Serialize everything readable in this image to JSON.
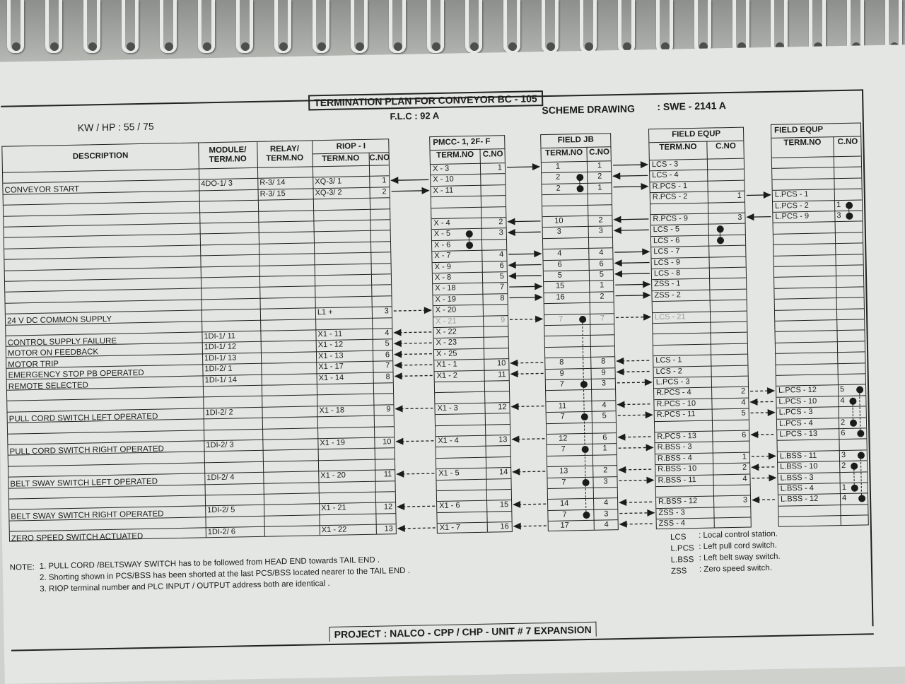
{
  "header": {
    "title": "TERMINATION PLAN FOR CONVEYOR BC - 105",
    "flc": "F.L.C : 92 A",
    "kw_hp": "KW / HP : 55 / 75",
    "scheme_label": "SCHEME DRAWING",
    "scheme_value": ": SWE - 2141 A"
  },
  "tables": {
    "main": {
      "headers": {
        "description": "DESCRIPTION",
        "module": "MODULE/ TERM.NO",
        "relay": "RELAY/ TERM.NO",
        "riop": "RIOP - I",
        "term": "TERM.NO",
        "cno": "C.NO"
      },
      "rows": {
        "1": [
          "CONVEYOR START",
          "4DO-1/ 3",
          "R-3/ 14",
          "XQ-3/ 1",
          "1"
        ],
        "2": [
          "",
          "",
          "R-3/ 15",
          "XQ-3/ 2",
          "2"
        ],
        "13": [
          "24 V DC COMMON SUPPLY",
          "",
          "",
          "L1 +",
          "3"
        ],
        "15": [
          "CONTROL SUPPLY FAILURE",
          "1DI-1/ 11",
          "",
          "X1 - 11",
          "4"
        ],
        "16": [
          "MOTOR ON FEEDBACK",
          "1DI-1/ 12",
          "",
          "X1 - 12",
          "5"
        ],
        "17": [
          "MOTOR TRIP",
          "1DI-1/ 13",
          "",
          "X1 - 13",
          "6"
        ],
        "18": [
          "EMERGENCY STOP PB OPERATED",
          "1DI-2/ 1",
          "",
          "X1 - 17",
          "7"
        ],
        "19": [
          "REMOTE SELECTED",
          "1DI-1/ 14",
          "",
          "X1 - 14",
          "8"
        ],
        "22": [
          "PULL CORD SWITCH LEFT OPERATED",
          "1DI-2/ 2",
          "",
          "X1 - 18",
          "9"
        ],
        "25": [
          "PULL CORD SWITCH RIGHT OPERATED",
          "1DI-2/ 3",
          "",
          "X1 - 19",
          "10"
        ],
        "28": [
          "BELT SWAY SWITCH LEFT OPERATED",
          "1DI-2/ 4",
          "",
          "X1 - 20",
          "11"
        ],
        "31": [
          "BELT SWAY SWITCH RIGHT OPERATED",
          "1DI-2/ 5",
          "",
          "X1 - 21",
          "12"
        ],
        "33": [
          "ZERO SPEED SWITCH ACTUATED",
          "1DI-2/ 6",
          "",
          "X1 - 22",
          "13"
        ]
      }
    },
    "pmcc": {
      "title": "PMCC- 1, 2F- F",
      "term": "TERM.NO",
      "cno": "C.NO",
      "rows": {
        "0": [
          "X - 3",
          "1"
        ],
        "1": [
          "X - 10",
          ""
        ],
        "2": [
          "X - 11",
          ""
        ],
        "5": [
          "X - 4",
          "2"
        ],
        "6": [
          "X - 5",
          "3"
        ],
        "7": [
          "X - 6",
          ""
        ],
        "8": [
          "X - 7",
          "4"
        ],
        "9": [
          "X - 9",
          "6"
        ],
        "10": [
          "X - 8",
          "5"
        ],
        "11": [
          "X - 18",
          "7"
        ],
        "12": [
          "X - 19",
          "8"
        ],
        "13": [
          "X - 20",
          ""
        ],
        "14": [
          "X - 21",
          "9"
        ],
        "15": [
          "X - 22",
          ""
        ],
        "16": [
          "X - 23",
          ""
        ],
        "17": [
          "X - 25",
          ""
        ],
        "18": [
          "X1 - 1",
          "10"
        ],
        "19": [
          "X1 - 2",
          "11"
        ],
        "22": [
          "X1 - 3",
          "12"
        ],
        "25": [
          "X1 - 4",
          "13"
        ],
        "28": [
          "X1 - 5",
          "14"
        ],
        "31": [
          "X1 - 6",
          "15"
        ],
        "33": [
          "X1 - 7",
          "16"
        ]
      },
      "shorting": [
        [
          6,
          7
        ]
      ],
      "dot_col": 0
    },
    "jb": {
      "title": "FIELD JB",
      "term": "TERM.NO",
      "cno": "C.NO",
      "rows": {
        "0": [
          "1",
          "1"
        ],
        "1": [
          "2",
          "2"
        ],
        "2": [
          "2",
          "1"
        ],
        "5": [
          "10",
          "2"
        ],
        "6": [
          "3",
          "3"
        ],
        "8": [
          "4",
          "4"
        ],
        "9": [
          "6",
          "6"
        ],
        "10": [
          "5",
          "5"
        ],
        "11": [
          "15",
          "1"
        ],
        "12": [
          "16",
          "2"
        ],
        "14": [
          "7",
          "7"
        ],
        "18": [
          "8",
          "8"
        ],
        "19": [
          "9",
          "9"
        ],
        "20": [
          "7",
          "3"
        ],
        "22": [
          "11",
          "4"
        ],
        "23": [
          "7",
          "5"
        ],
        "25": [
          "12",
          "6"
        ],
        "26": [
          "7",
          "1"
        ],
        "28": [
          "13",
          "2"
        ],
        "29": [
          "7",
          "3"
        ],
        "31": [
          "14",
          "4"
        ],
        "32": [
          "7",
          "3"
        ],
        "33": [
          "17",
          "4"
        ]
      },
      "shorting": [
        [
          1,
          2
        ],
        [
          14,
          20,
          23,
          26,
          29,
          32
        ]
      ],
      "dot_col": 0
    },
    "fe1": {
      "title": "FIELD EQUP",
      "term": "TERM.NO",
      "cno": "C.NO",
      "rows": {
        "0": [
          "LCS - 3",
          ""
        ],
        "1": [
          "LCS - 4",
          ""
        ],
        "2": [
          "R.PCS - 1",
          ""
        ],
        "3": [
          "R.PCS - 2",
          "1"
        ],
        "5": [
          "R.PCS - 9",
          "3"
        ],
        "6": [
          "LCS - 5",
          ""
        ],
        "7": [
          "LCS - 6",
          ""
        ],
        "8": [
          "LCS - 7",
          ""
        ],
        "9": [
          "LCS - 9",
          ""
        ],
        "10": [
          "LCS - 8",
          ""
        ],
        "11": [
          "ZSS - 1",
          ""
        ],
        "12": [
          "ZSS - 2",
          ""
        ],
        "14": [
          "LCS - 21",
          ""
        ],
        "18": [
          "LCS - 1",
          ""
        ],
        "19": [
          "LCS - 2",
          ""
        ],
        "20": [
          "L.PCS - 3",
          ""
        ],
        "21": [
          "R.PCS - 4",
          "2"
        ],
        "22": [
          "R.PCS - 10",
          "4"
        ],
        "23": [
          "R.PCS - 11",
          "5"
        ],
        "25": [
          "R.PCS - 13",
          "6"
        ],
        "26": [
          "R.BSS - 3",
          ""
        ],
        "27": [
          "R.BSS - 4",
          "1"
        ],
        "28": [
          "R.BSS - 10",
          "2"
        ],
        "29": [
          "R.BSS - 11",
          "4"
        ],
        "31": [
          "R.BSS - 12",
          "3"
        ],
        "32": [
          "ZSS - 3",
          ""
        ],
        "33": [
          "ZSS - 4",
          ""
        ]
      },
      "shorting": [
        [
          6,
          7
        ]
      ],
      "dot_col": 1
    },
    "fe2": {
      "title": "FIELD EQUP",
      "term": "TERM.NO",
      "cno": "C.NO",
      "rows": {
        "3": [
          "L.PCS - 1",
          ""
        ],
        "4": [
          "L.PCS - 2",
          "1"
        ],
        "5": [
          "L.PCS - 9",
          "3"
        ],
        "21": [
          "L.PCS - 12",
          "5"
        ],
        "22": [
          "L.PCS - 10",
          "4"
        ],
        "23": [
          "L.PCS - 3",
          ""
        ],
        "24": [
          "L.PCS - 4",
          "2"
        ],
        "25": [
          "L.PCS - 13",
          "6"
        ],
        "27": [
          "L.BSS - 11",
          "3"
        ],
        "28": [
          "L.BSS - 10",
          "2"
        ],
        "29": [
          "L.BSS - 3",
          ""
        ],
        "30": [
          "L.BSS - 4",
          "1"
        ],
        "31": [
          "L.BSS - 12",
          "4"
        ]
      },
      "shorting": [
        [
          4,
          5
        ],
        [
          21,
          25
        ],
        [
          22,
          24
        ],
        [
          27,
          31
        ],
        [
          28,
          30
        ]
      ],
      "dot_col": 1
    }
  },
  "faded_rows": [
    14
  ],
  "connections": [
    {
      "gap": 0,
      "row": 1,
      "dir": "left",
      "dashed": false
    },
    {
      "gap": 0,
      "row": 2,
      "dir": "right",
      "dashed": false
    },
    {
      "gap": 0,
      "row": 13,
      "dir": "right",
      "dashed": true
    },
    {
      "gap": 0,
      "row": 15,
      "dir": "left",
      "dashed": true
    },
    {
      "gap": 0,
      "row": 16,
      "dir": "left",
      "dashed": true
    },
    {
      "gap": 0,
      "row": 17,
      "dir": "left",
      "dashed": true
    },
    {
      "gap": 0,
      "row": 18,
      "dir": "left",
      "dashed": true
    },
    {
      "gap": 0,
      "row": 19,
      "dir": "left",
      "dashed": true
    },
    {
      "gap": 0,
      "row": 22,
      "dir": "left",
      "dashed": true
    },
    {
      "gap": 0,
      "row": 25,
      "dir": "left",
      "dashed": true
    },
    {
      "gap": 0,
      "row": 28,
      "dir": "left",
      "dashed": true
    },
    {
      "gap": 0,
      "row": 31,
      "dir": "left",
      "dashed": true
    },
    {
      "gap": 0,
      "row": 33,
      "dir": "left",
      "dashed": true
    },
    {
      "gap": 1,
      "row": 0,
      "dir": "right",
      "dashed": false
    },
    {
      "gap": 1,
      "row": 5,
      "dir": "left",
      "dashed": false
    },
    {
      "gap": 1,
      "row": 6,
      "dir": "left",
      "dashed": false
    },
    {
      "gap": 1,
      "row": 8,
      "dir": "right",
      "dashed": false
    },
    {
      "gap": 1,
      "row": 9,
      "dir": "left",
      "dashed": false
    },
    {
      "gap": 1,
      "row": 10,
      "dir": "left",
      "dashed": false
    },
    {
      "gap": 1,
      "row": 11,
      "dir": "right",
      "dashed": false
    },
    {
      "gap": 1,
      "row": 12,
      "dir": "right",
      "dashed": false
    },
    {
      "gap": 1,
      "row": 14,
      "dir": "right",
      "dashed": true
    },
    {
      "gap": 1,
      "row": 18,
      "dir": "left",
      "dashed": true
    },
    {
      "gap": 1,
      "row": 19,
      "dir": "left",
      "dashed": true
    },
    {
      "gap": 1,
      "row": 22,
      "dir": "left",
      "dashed": true
    },
    {
      "gap": 1,
      "row": 25,
      "dir": "left",
      "dashed": true
    },
    {
      "gap": 1,
      "row": 28,
      "dir": "left",
      "dashed": true
    },
    {
      "gap": 1,
      "row": 31,
      "dir": "left",
      "dashed": true
    },
    {
      "gap": 1,
      "row": 33,
      "dir": "left",
      "dashed": true
    },
    {
      "gap": 2,
      "row": 0,
      "dir": "right",
      "dashed": false
    },
    {
      "gap": 2,
      "row": 1,
      "dir": "left",
      "dashed": false
    },
    {
      "gap": 2,
      "row": 2,
      "dir": "right",
      "dashed": false
    },
    {
      "gap": 2,
      "row": 5,
      "dir": "left",
      "dashed": false
    },
    {
      "gap": 2,
      "row": 6,
      "dir": "left",
      "dashed": false
    },
    {
      "gap": 2,
      "row": 8,
      "dir": "right",
      "dashed": false
    },
    {
      "gap": 2,
      "row": 9,
      "dir": "left",
      "dashed": false
    },
    {
      "gap": 2,
      "row": 10,
      "dir": "left",
      "dashed": false
    },
    {
      "gap": 2,
      "row": 11,
      "dir": "right",
      "dashed": false
    },
    {
      "gap": 2,
      "row": 12,
      "dir": "right",
      "dashed": false
    },
    {
      "gap": 2,
      "row": 14,
      "dir": "right",
      "dashed": true
    },
    {
      "gap": 2,
      "row": 18,
      "dir": "left",
      "dashed": true
    },
    {
      "gap": 2,
      "row": 19,
      "dir": "left",
      "dashed": true
    },
    {
      "gap": 2,
      "row": 20,
      "dir": "right",
      "dashed": true
    },
    {
      "gap": 2,
      "row": 22,
      "dir": "left",
      "dashed": true
    },
    {
      "gap": 2,
      "row": 23,
      "dir": "right",
      "dashed": true
    },
    {
      "gap": 2,
      "row": 25,
      "dir": "left",
      "dashed": true
    },
    {
      "gap": 2,
      "row": 26,
      "dir": "right",
      "dashed": true
    },
    {
      "gap": 2,
      "row": 28,
      "dir": "left",
      "dashed": true
    },
    {
      "gap": 2,
      "row": 29,
      "dir": "right",
      "dashed": true
    },
    {
      "gap": 2,
      "row": 31,
      "dir": "left",
      "dashed": true
    },
    {
      "gap": 2,
      "row": 32,
      "dir": "right",
      "dashed": true
    },
    {
      "gap": 2,
      "row": 33,
      "dir": "left",
      "dashed": true
    },
    {
      "gap": 3,
      "row": 3,
      "dir": "right",
      "dashed": false
    },
    {
      "gap": 3,
      "row": 5,
      "dir": "left",
      "dashed": false
    },
    {
      "gap": 3,
      "row": 21,
      "dir": "right",
      "dashed": true
    },
    {
      "gap": 3,
      "row": 22,
      "dir": "left",
      "dashed": true
    },
    {
      "gap": 3,
      "row": 23,
      "dir": "right",
      "dashed": true
    },
    {
      "gap": 3,
      "row": 25,
      "dir": "left",
      "dashed": true
    },
    {
      "gap": 3,
      "row": 27,
      "dir": "right",
      "dashed": true
    },
    {
      "gap": 3,
      "row": 28,
      "dir": "left",
      "dashed": true
    },
    {
      "gap": 3,
      "row": 29,
      "dir": "right",
      "dashed": true
    },
    {
      "gap": 3,
      "row": 31,
      "dir": "left",
      "dashed": true
    }
  ],
  "notes": {
    "label": "NOTE:",
    "items": [
      "1. PULL CORD /BELTSWAY SWITCH has to be followed from HEAD END towards TAIL END .",
      "2. Shorting shown in PCS/BSS has been shorted at the last PCS/BSS located nearer to the TAIL END .",
      "3. RIOP terminal number and PLC INPUT / OUTPUT address both are identical ."
    ]
  },
  "legend": [
    {
      "abbr": "LCS",
      "meaning": ": Local control station."
    },
    {
      "abbr": "L.PCS",
      "meaning": ": Left pull cord switch."
    },
    {
      "abbr": "L.BSS",
      "meaning": ": Left belt sway switch."
    },
    {
      "abbr": "ZSS",
      "meaning": ": Zero speed switch."
    }
  ],
  "footer": {
    "project": "PROJECT : NALCO - CPP / CHP - UNIT # 7 EXPANSION"
  }
}
